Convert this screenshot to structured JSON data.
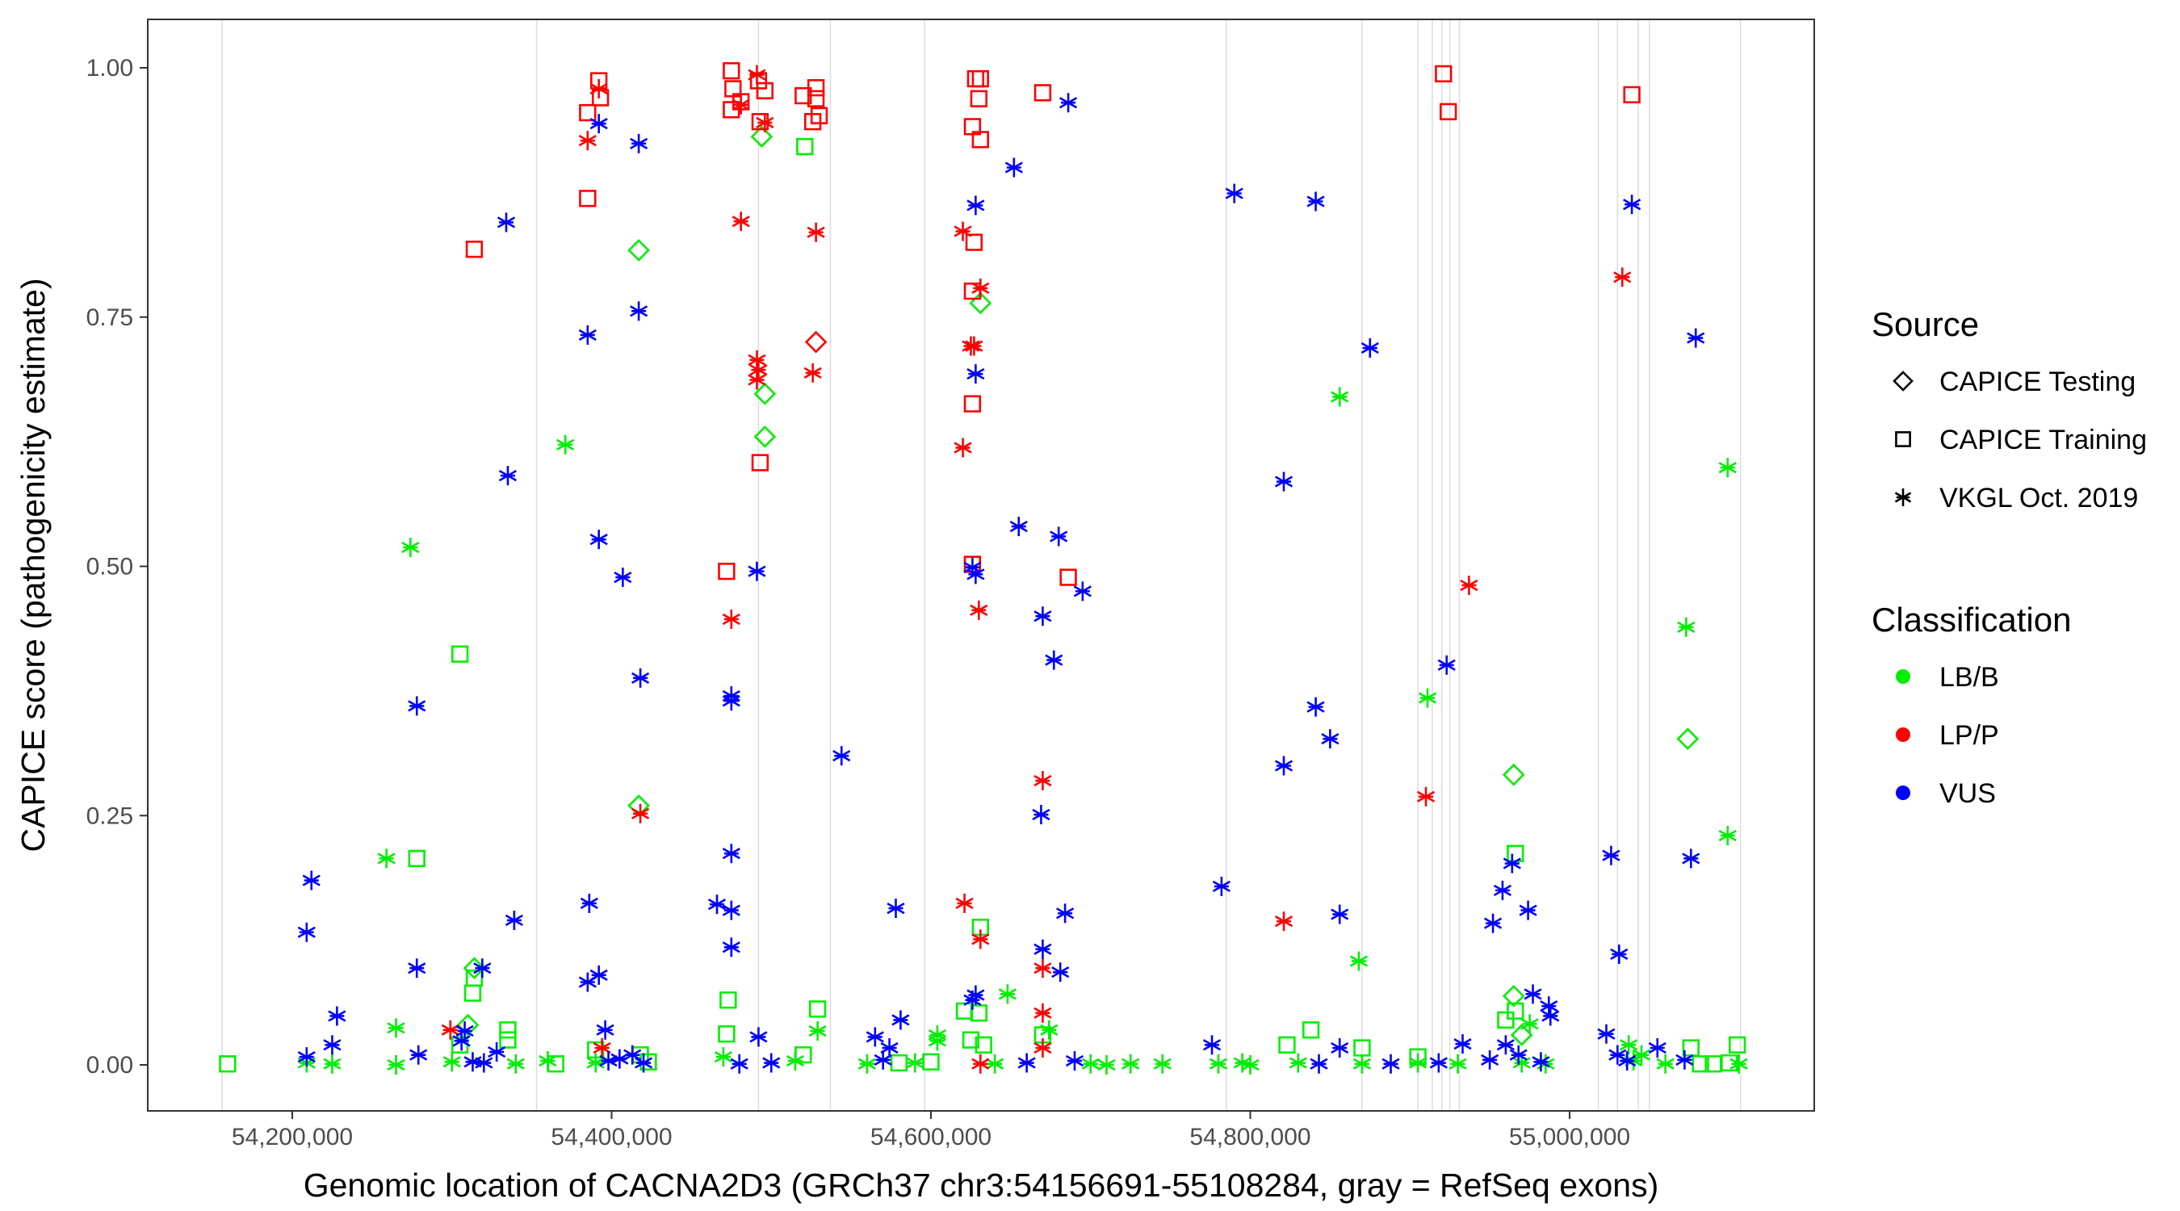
{
  "chart_data": {
    "type": "scatter",
    "xlabel": "Genomic location of CACNA2D3 (GRCh37 chr3:54156691-55108284, gray = RefSeq exons)",
    "ylabel": "CAPICE score (pathogenicity estimate)",
    "xlim": [
      54110000,
      55152000
    ],
    "ylim": [
      -0.05,
      1.05
    ],
    "x_ticks": [
      "54,200,000",
      "54,400,000",
      "54,600,000",
      "54,800,000",
      "55,000,000"
    ],
    "x_tick_values": [
      54200000,
      54400000,
      54600000,
      54800000,
      55000000
    ],
    "y_ticks": [
      "0.00",
      "0.25",
      "0.50",
      "0.75",
      "1.00"
    ],
    "y_tick_values": [
      0,
      0.25,
      0.5,
      0.75,
      1.0
    ],
    "grid": false,
    "x_unit_note_k": 1000,
    "exon_lines": [
      54156,
      54353,
      54492,
      54537,
      54596,
      54785,
      54870,
      54905,
      54914,
      54920,
      54925,
      54931,
      55018,
      55030,
      55043,
      55050,
      55107
    ],
    "legend": {
      "placement": "right",
      "source_title": "Source",
      "sources": [
        {
          "key": "testing",
          "label": "CAPICE Testing",
          "shape": "diamond"
        },
        {
          "key": "training",
          "label": "CAPICE Training",
          "shape": "square"
        },
        {
          "key": "vkgl",
          "label": "VKGL Oct. 2019",
          "shape": "asterisk"
        }
      ],
      "class_title": "Classification",
      "classes": [
        {
          "key": "lbb",
          "label": "LB/B",
          "color": "#00ee00"
        },
        {
          "key": "lpp",
          "label": "LP/P",
          "color": "#ff0000"
        },
        {
          "key": "vus",
          "label": "VUS",
          "color": "#0000ff"
        }
      ]
    },
    "series": [
      {
        "classification": "LP/P",
        "source": "CAPICE Training",
        "points_kbp_score": [
          [
            54385,
            0.955
          ],
          [
            54392,
            0.987
          ],
          [
            54393,
            0.97
          ],
          [
            54475,
            0.997
          ],
          [
            54476,
            0.979
          ],
          [
            54475,
            0.958
          ],
          [
            54481,
            0.966
          ],
          [
            54492,
            0.987
          ],
          [
            54496,
            0.977
          ],
          [
            54520,
            0.972
          ],
          [
            54528,
            0.98
          ],
          [
            54528,
            0.969
          ],
          [
            54526,
            0.946
          ],
          [
            54530,
            0.952
          ],
          [
            54493,
            0.946
          ],
          [
            54628,
            0.989
          ],
          [
            54631,
            0.989
          ],
          [
            54630,
            0.969
          ],
          [
            54626,
            0.941
          ],
          [
            54631,
            0.928
          ],
          [
            54670,
            0.975
          ],
          [
            54921,
            0.994
          ],
          [
            54924,
            0.956
          ],
          [
            55039,
            0.973
          ],
          [
            54385,
            0.869
          ],
          [
            54314,
            0.818
          ],
          [
            54627,
            0.825
          ],
          [
            54626,
            0.776
          ],
          [
            54626,
            0.663
          ],
          [
            54493,
            0.604
          ],
          [
            54472,
            0.495
          ],
          [
            54626,
            0.502
          ],
          [
            54686,
            0.489
          ]
        ]
      },
      {
        "classification": "LP/P",
        "source": "CAPICE Testing",
        "points_kbp_score": [
          [
            54528,
            0.725
          ]
        ]
      },
      {
        "classification": "LP/P",
        "source": "VKGL Oct. 2019",
        "points_kbp_score": [
          [
            54385,
            0.927
          ],
          [
            54392,
            0.979
          ],
          [
            54491,
            0.993
          ],
          [
            54481,
            0.963
          ],
          [
            54496,
            0.945
          ],
          [
            54481,
            0.846
          ],
          [
            54528,
            0.835
          ],
          [
            54620,
            0.836
          ],
          [
            54631,
            0.779
          ],
          [
            54625,
            0.721
          ],
          [
            54627,
            0.721
          ],
          [
            54491,
            0.707
          ],
          [
            54492,
            0.697
          ],
          [
            54491,
            0.687
          ],
          [
            54526,
            0.694
          ],
          [
            54620,
            0.619
          ],
          [
            55033,
            0.79
          ],
          [
            54475,
            0.447
          ],
          [
            54937,
            0.481
          ],
          [
            54630,
            0.456
          ],
          [
            54670,
            0.285
          ],
          [
            54418,
            0.252
          ],
          [
            54910,
            0.269
          ],
          [
            54621,
            0.162
          ],
          [
            54631,
            0.126
          ],
          [
            54821,
            0.144
          ],
          [
            54670,
            0.097
          ],
          [
            54670,
            0.052
          ],
          [
            54670,
            0.017
          ],
          [
            54394,
            0.017
          ],
          [
            54299,
            0.035
          ],
          [
            54631,
            0.001
          ]
        ]
      },
      {
        "classification": "VUS",
        "source": "VKGL Oct. 2019",
        "points_kbp_score": [
          [
            54686,
            0.965
          ],
          [
            54392,
            0.944
          ],
          [
            54417,
            0.924
          ],
          [
            54652,
            0.9
          ],
          [
            54628,
            0.862
          ],
          [
            54790,
            0.874
          ],
          [
            54841,
            0.866
          ],
          [
            55039,
            0.863
          ],
          [
            54334,
            0.845
          ],
          [
            54417,
            0.756
          ],
          [
            54385,
            0.732
          ],
          [
            54875,
            0.719
          ],
          [
            55079,
            0.729
          ],
          [
            54628,
            0.693
          ],
          [
            54335,
            0.591
          ],
          [
            54821,
            0.585
          ],
          [
            54655,
            0.54
          ],
          [
            54680,
            0.53
          ],
          [
            54392,
            0.527
          ],
          [
            54407,
            0.489
          ],
          [
            54491,
            0.495
          ],
          [
            54626,
            0.499
          ],
          [
            54628,
            0.492
          ],
          [
            54695,
            0.475
          ],
          [
            54670,
            0.45
          ],
          [
            54677,
            0.406
          ],
          [
            54923,
            0.401
          ],
          [
            54418,
            0.388
          ],
          [
            54475,
            0.37
          ],
          [
            54475,
            0.365
          ],
          [
            54278,
            0.36
          ],
          [
            54841,
            0.359
          ],
          [
            54850,
            0.327
          ],
          [
            54544,
            0.31
          ],
          [
            54669,
            0.251
          ],
          [
            54821,
            0.3
          ],
          [
            54212,
            0.185
          ],
          [
            54475,
            0.212
          ],
          [
            55026,
            0.21
          ],
          [
            55076,
            0.207
          ],
          [
            54782,
            0.179
          ],
          [
            54209,
            0.133
          ],
          [
            54964,
            0.202
          ],
          [
            54958,
            0.175
          ],
          [
            54386,
            0.162
          ],
          [
            54466,
            0.161
          ],
          [
            54475,
            0.155
          ],
          [
            54578,
            0.157
          ],
          [
            54684,
            0.152
          ],
          [
            54856,
            0.151
          ],
          [
            54974,
            0.155
          ],
          [
            54339,
            0.145
          ],
          [
            54952,
            0.142
          ],
          [
            55031,
            0.111
          ],
          [
            54475,
            0.118
          ],
          [
            54670,
            0.116
          ],
          [
            54278,
            0.097
          ],
          [
            54319,
            0.097
          ],
          [
            54681,
            0.093
          ],
          [
            54392,
            0.09
          ],
          [
            54385,
            0.083
          ],
          [
            54628,
            0.07
          ],
          [
            54626,
            0.065
          ],
          [
            54228,
            0.049
          ],
          [
            54581,
            0.045
          ],
          [
            54977,
            0.071
          ],
          [
            54987,
            0.059
          ],
          [
            54988,
            0.049
          ],
          [
            54225,
            0.02
          ],
          [
            54565,
            0.028
          ],
          [
            54574,
            0.017
          ],
          [
            54396,
            0.035
          ],
          [
            54492,
            0.028
          ],
          [
            54776,
            0.02
          ],
          [
            55023,
            0.031
          ],
          [
            54933,
            0.021
          ],
          [
            55055,
            0.017
          ],
          [
            54209,
            0.008
          ],
          [
            54856,
            0.017
          ],
          [
            54279,
            0.01
          ],
          [
            54308,
            0.034
          ],
          [
            54306,
            0.024
          ],
          [
            54328,
            0.013
          ],
          [
            54413,
            0.01
          ],
          [
            54313,
            0.003
          ],
          [
            54320,
            0.002
          ],
          [
            54398,
            0.004
          ],
          [
            54405,
            0.006
          ],
          [
            54420,
            0.002
          ],
          [
            54480,
            0.001
          ],
          [
            54500,
            0.002
          ],
          [
            54570,
            0.005
          ],
          [
            54660,
            0.002
          ],
          [
            54690,
            0.004
          ],
          [
            54843,
            0.001
          ],
          [
            54888,
            0.001
          ],
          [
            54918,
            0.002
          ],
          [
            54950,
            0.005
          ],
          [
            54960,
            0.02
          ],
          [
            54968,
            0.01
          ],
          [
            54982,
            0.003
          ],
          [
            55030,
            0.01
          ],
          [
            55036,
            0.004
          ],
          [
            55072,
            0.005
          ]
        ]
      },
      {
        "classification": "LB/B",
        "source": "VKGL Oct. 2019",
        "points_kbp_score": [
          [
            54371,
            0.622
          ],
          [
            54274,
            0.519
          ],
          [
            54856,
            0.67
          ],
          [
            55099,
            0.599
          ],
          [
            55073,
            0.439
          ],
          [
            54911,
            0.368
          ],
          [
            55099,
            0.23
          ],
          [
            54259,
            0.207
          ],
          [
            54868,
            0.104
          ],
          [
            54648,
            0.071
          ],
          [
            54265,
            0.037
          ],
          [
            54529,
            0.034
          ],
          [
            54674,
            0.035
          ],
          [
            55037,
            0.02
          ],
          [
            54604,
            0.024
          ],
          [
            54975,
            0.041
          ],
          [
            54209,
            0.002
          ],
          [
            54225,
            0.001
          ],
          [
            54265,
            0.0
          ],
          [
            54300,
            0.003
          ],
          [
            54340,
            0.001
          ],
          [
            54360,
            0.004
          ],
          [
            54390,
            0.002
          ],
          [
            54470,
            0.008
          ],
          [
            54515,
            0.004
          ],
          [
            54560,
            0.001
          ],
          [
            54590,
            0.002
          ],
          [
            54604,
            0.03
          ],
          [
            54640,
            0.001
          ],
          [
            54700,
            0.001
          ],
          [
            54710,
            0.0
          ],
          [
            54725,
            0.001
          ],
          [
            54745,
            0.001
          ],
          [
            54780,
            0.001
          ],
          [
            54795,
            0.002
          ],
          [
            54800,
            0.0
          ],
          [
            54830,
            0.002
          ],
          [
            54870,
            0.001
          ],
          [
            54905,
            0.002
          ],
          [
            54930,
            0.001
          ],
          [
            54970,
            0.002
          ],
          [
            54985,
            0.001
          ],
          [
            55040,
            0.004
          ],
          [
            55045,
            0.01
          ],
          [
            55060,
            0.001
          ],
          [
            55106,
            0.001
          ]
        ]
      },
      {
        "classification": "LB/B",
        "source": "CAPICE Testing",
        "points_kbp_score": [
          [
            54494,
            0.931
          ],
          [
            54417,
            0.817
          ],
          [
            54631,
            0.764
          ],
          [
            54496,
            0.673
          ],
          [
            54496,
            0.63
          ],
          [
            55074,
            0.327
          ],
          [
            54965,
            0.291
          ],
          [
            54417,
            0.26
          ],
          [
            54314,
            0.097
          ],
          [
            54965,
            0.069
          ],
          [
            54310,
            0.04
          ],
          [
            54970,
            0.03
          ]
        ]
      },
      {
        "classification": "LB/B",
        "source": "CAPICE Training",
        "points_kbp_score": [
          [
            54521,
            0.921
          ],
          [
            54305,
            0.412
          ],
          [
            54278,
            0.207
          ],
          [
            54966,
            0.212
          ],
          [
            54631,
            0.138
          ],
          [
            54314,
            0.087
          ],
          [
            54313,
            0.072
          ],
          [
            54473,
            0.065
          ],
          [
            54529,
            0.056
          ],
          [
            54630,
            0.052
          ],
          [
            54621,
            0.054
          ],
          [
            54966,
            0.054
          ],
          [
            54472,
            0.031
          ],
          [
            54838,
            0.035
          ],
          [
            54823,
            0.02
          ],
          [
            54870,
            0.017
          ],
          [
            54159.5,
            0.001
          ],
          [
            55105,
            0.02
          ],
          [
            55076,
            0.017
          ],
          [
            54335,
            0.035
          ],
          [
            54335,
            0.025
          ],
          [
            54305,
            0.02
          ],
          [
            54390,
            0.015
          ],
          [
            54418,
            0.01
          ],
          [
            54423,
            0.003
          ],
          [
            54520,
            0.01
          ],
          [
            54580,
            0.002
          ],
          [
            54600,
            0.003
          ],
          [
            54625,
            0.025
          ],
          [
            54633,
            0.02
          ],
          [
            54670,
            0.03
          ],
          [
            54905,
            0.008
          ],
          [
            54960,
            0.045
          ],
          [
            55082,
            0.001
          ],
          [
            55090,
            0.001
          ],
          [
            55100,
            0.002
          ],
          [
            54365,
            0.001
          ]
        ]
      }
    ]
  }
}
